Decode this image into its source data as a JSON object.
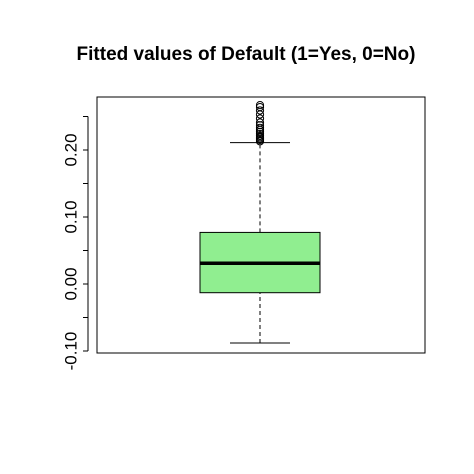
{
  "chart_data": {
    "type": "boxplot",
    "title": "Fitted values of Default (1=Yes, 0=No)",
    "xlabel": "",
    "ylabel": "",
    "ylim": [
      -0.1,
      0.27
    ],
    "y_ticks": [
      -0.1,
      -0.05,
      0.0,
      0.05,
      0.1,
      0.15,
      0.2,
      0.25
    ],
    "y_tick_labels": [
      "-0.10",
      "",
      "0.00",
      "",
      "0.10",
      "",
      "0.20",
      ""
    ],
    "grid": false,
    "legend": "none",
    "box": {
      "whisker_low": -0.088,
      "q1": -0.013,
      "median": 0.031,
      "q3": 0.077,
      "whisker_high": 0.211,
      "fill_color": "#90ee90",
      "outliers": [
        0.213,
        0.215,
        0.217,
        0.219,
        0.221,
        0.224,
        0.227,
        0.23,
        0.233,
        0.237,
        0.241,
        0.247,
        0.253,
        0.259,
        0.264,
        0.267
      ]
    }
  }
}
